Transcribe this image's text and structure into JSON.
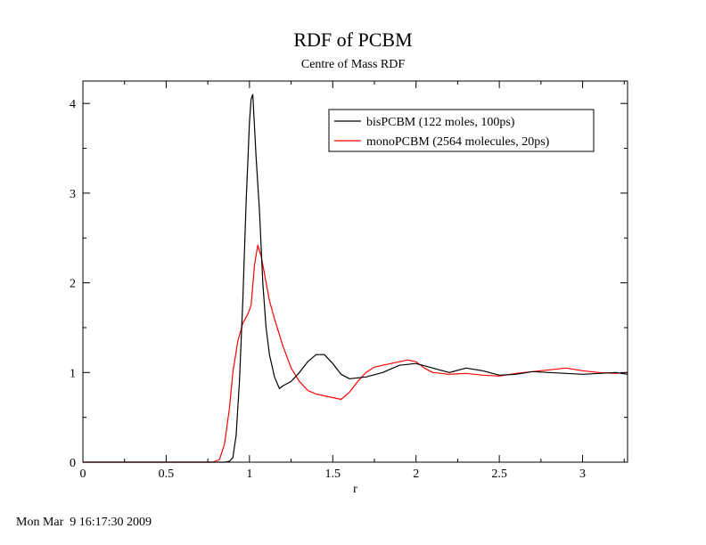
{
  "chart_data": {
    "type": "line",
    "title": "RDF of PCBM",
    "subtitle": "Centre of Mass RDF",
    "xlabel": "r",
    "ylabel": "",
    "xlim": [
      0,
      3.27
    ],
    "ylim": [
      0,
      4.25
    ],
    "x_ticks": [
      "0",
      "0.5",
      "1",
      "1.5",
      "2",
      "2.5",
      "3"
    ],
    "x_tick_values": [
      0,
      0.5,
      1,
      1.5,
      2,
      2.5,
      3
    ],
    "y_ticks": [
      "0",
      "1",
      "2",
      "3",
      "4"
    ],
    "y_tick_values": [
      0,
      1,
      2,
      3,
      4
    ],
    "grid": false,
    "legend_position": "top-right",
    "series": [
      {
        "name": "bisPCBM (122 moles, 100ps)",
        "color": "#000000",
        "points": [
          [
            0,
            0
          ],
          [
            0.5,
            0
          ],
          [
            0.85,
            0
          ],
          [
            0.88,
            0.01
          ],
          [
            0.9,
            0.05
          ],
          [
            0.92,
            0.3
          ],
          [
            0.94,
            0.9
          ],
          [
            0.96,
            1.8
          ],
          [
            0.98,
            2.9
          ],
          [
            1.0,
            3.8
          ],
          [
            1.01,
            4.05
          ],
          [
            1.02,
            4.1
          ],
          [
            1.04,
            3.4
          ],
          [
            1.06,
            2.8
          ],
          [
            1.08,
            2.0
          ],
          [
            1.1,
            1.5
          ],
          [
            1.12,
            1.2
          ],
          [
            1.15,
            0.95
          ],
          [
            1.18,
            0.82
          ],
          [
            1.2,
            0.85
          ],
          [
            1.25,
            0.9
          ],
          [
            1.3,
            1.0
          ],
          [
            1.35,
            1.12
          ],
          [
            1.4,
            1.2
          ],
          [
            1.45,
            1.2
          ],
          [
            1.5,
            1.1
          ],
          [
            1.55,
            0.98
          ],
          [
            1.6,
            0.93
          ],
          [
            1.7,
            0.95
          ],
          [
            1.8,
            1.0
          ],
          [
            1.9,
            1.08
          ],
          [
            2.0,
            1.1
          ],
          [
            2.1,
            1.05
          ],
          [
            2.2,
            1.0
          ],
          [
            2.3,
            1.05
          ],
          [
            2.4,
            1.02
          ],
          [
            2.5,
            0.97
          ],
          [
            2.6,
            0.98
          ],
          [
            2.7,
            1.01
          ],
          [
            2.8,
            1.0
          ],
          [
            2.9,
            0.99
          ],
          [
            3.0,
            0.98
          ],
          [
            3.1,
            0.99
          ],
          [
            3.2,
            1.0
          ],
          [
            3.27,
            0.98
          ]
        ]
      },
      {
        "name": "monoPCBM (2564 molecules, 20ps)",
        "color": "#ff0000",
        "points": [
          [
            0,
            0
          ],
          [
            0.5,
            0
          ],
          [
            0.78,
            0
          ],
          [
            0.82,
            0.03
          ],
          [
            0.85,
            0.2
          ],
          [
            0.88,
            0.6
          ],
          [
            0.9,
            1.0
          ],
          [
            0.93,
            1.35
          ],
          [
            0.96,
            1.55
          ],
          [
            0.99,
            1.65
          ],
          [
            1.01,
            1.75
          ],
          [
            1.03,
            2.2
          ],
          [
            1.05,
            2.42
          ],
          [
            1.07,
            2.3
          ],
          [
            1.09,
            2.1
          ],
          [
            1.12,
            1.8
          ],
          [
            1.15,
            1.6
          ],
          [
            1.2,
            1.3
          ],
          [
            1.25,
            1.05
          ],
          [
            1.3,
            0.9
          ],
          [
            1.35,
            0.8
          ],
          [
            1.4,
            0.76
          ],
          [
            1.45,
            0.74
          ],
          [
            1.5,
            0.72
          ],
          [
            1.55,
            0.7
          ],
          [
            1.6,
            0.78
          ],
          [
            1.65,
            0.9
          ],
          [
            1.7,
            1.0
          ],
          [
            1.75,
            1.06
          ],
          [
            1.8,
            1.08
          ],
          [
            1.85,
            1.1
          ],
          [
            1.9,
            1.12
          ],
          [
            1.95,
            1.14
          ],
          [
            2.0,
            1.12
          ],
          [
            2.05,
            1.05
          ],
          [
            2.1,
            1.0
          ],
          [
            2.2,
            0.98
          ],
          [
            2.3,
            0.99
          ],
          [
            2.4,
            0.97
          ],
          [
            2.5,
            0.96
          ],
          [
            2.6,
            0.99
          ],
          [
            2.7,
            1.01
          ],
          [
            2.8,
            1.03
          ],
          [
            2.9,
            1.05
          ],
          [
            3.0,
            1.02
          ],
          [
            3.1,
            1.0
          ],
          [
            3.2,
            0.99
          ],
          [
            3.27,
            1.0
          ]
        ]
      }
    ]
  },
  "footer": {
    "timestamp": "Mon Mar  9 16:17:30 2009"
  }
}
